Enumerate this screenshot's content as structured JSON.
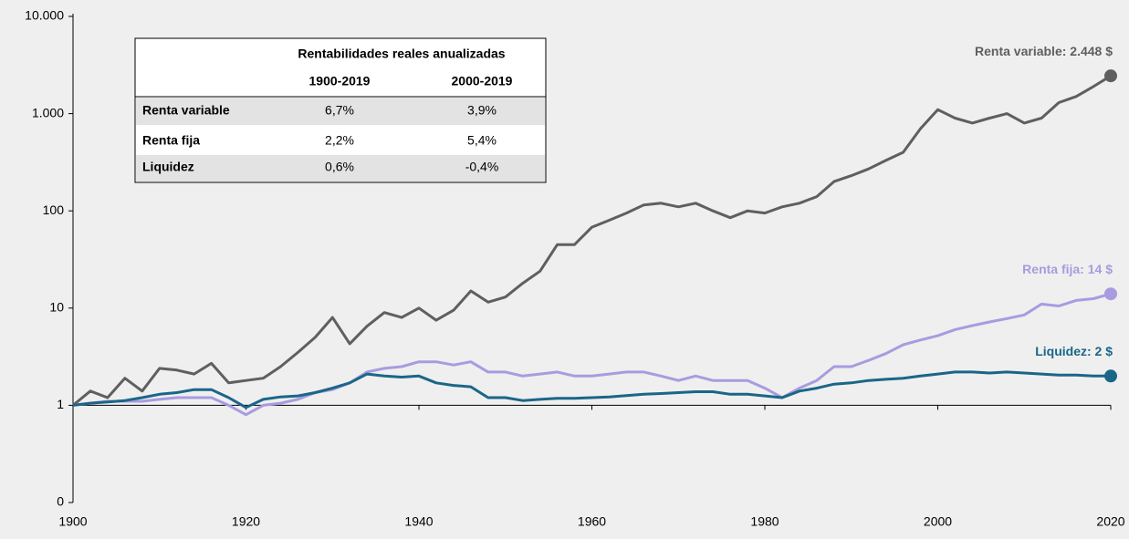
{
  "chart_data": {
    "type": "line",
    "log_y": true,
    "x": [
      1900,
      1902,
      1904,
      1906,
      1908,
      1910,
      1912,
      1914,
      1916,
      1918,
      1920,
      1922,
      1924,
      1926,
      1928,
      1930,
      1932,
      1934,
      1936,
      1938,
      1940,
      1942,
      1944,
      1946,
      1948,
      1950,
      1952,
      1954,
      1956,
      1958,
      1960,
      1962,
      1964,
      1966,
      1968,
      1970,
      1972,
      1974,
      1976,
      1978,
      1980,
      1982,
      1984,
      1986,
      1988,
      1990,
      1992,
      1994,
      1996,
      1998,
      2000,
      2002,
      2004,
      2006,
      2008,
      2010,
      2012,
      2014,
      2016,
      2018,
      2020
    ],
    "xlim": [
      1900,
      2020
    ],
    "xticks": [
      1900,
      1920,
      1940,
      1960,
      1980,
      2000,
      2020
    ],
    "ylim": [
      0.1,
      10000
    ],
    "yticks": [
      {
        "value": 0.1,
        "label": "0"
      },
      1,
      10,
      100,
      {
        "value": 1000,
        "label": "1.000"
      },
      {
        "value": 10000,
        "label": "10.000"
      }
    ],
    "series": [
      {
        "name": "Renta variable",
        "color": "#5f5f5f",
        "values": [
          1,
          1.4,
          1.2,
          1.9,
          1.4,
          2.4,
          2.3,
          2.1,
          2.7,
          1.7,
          1.8,
          1.9,
          2.5,
          3.5,
          5,
          8,
          4.3,
          6.5,
          9,
          8,
          10,
          7.5,
          9.5,
          15,
          11.5,
          13,
          18,
          24,
          45,
          45,
          68,
          80,
          95,
          115,
          120,
          110,
          120,
          100,
          85,
          100,
          95,
          110,
          120,
          140,
          200,
          230,
          270,
          330,
          400,
          700,
          1100,
          900,
          800,
          900,
          1000,
          800,
          900,
          1300,
          1500,
          1900,
          2448
        ]
      },
      {
        "name": "Renta fija",
        "color": "#a99be0",
        "values": [
          1,
          1.05,
          1.1,
          1.1,
          1.1,
          1.15,
          1.2,
          1.2,
          1.2,
          1.0,
          0.8,
          1.0,
          1.05,
          1.15,
          1.35,
          1.45,
          1.7,
          2.2,
          2.4,
          2.5,
          2.8,
          2.8,
          2.6,
          2.8,
          2.2,
          2.2,
          2.0,
          2.1,
          2.2,
          2.0,
          2.0,
          2.1,
          2.2,
          2.2,
          2.0,
          1.8,
          2.0,
          1.8,
          1.8,
          1.8,
          1.5,
          1.2,
          1.5,
          1.8,
          2.5,
          2.5,
          2.9,
          3.4,
          4.2,
          4.7,
          5.2,
          6,
          6.6,
          7.2,
          7.8,
          8.5,
          11,
          10.5,
          12,
          12.5,
          14
        ]
      },
      {
        "name": "Liquidez",
        "color": "#1a6688",
        "values": [
          1,
          1.05,
          1.08,
          1.12,
          1.2,
          1.3,
          1.35,
          1.45,
          1.45,
          1.2,
          0.95,
          1.15,
          1.22,
          1.25,
          1.35,
          1.5,
          1.7,
          2.1,
          2.0,
          1.95,
          2.0,
          1.7,
          1.6,
          1.55,
          1.2,
          1.2,
          1.12,
          1.15,
          1.18,
          1.18,
          1.2,
          1.22,
          1.26,
          1.3,
          1.32,
          1.35,
          1.38,
          1.38,
          1.3,
          1.3,
          1.25,
          1.2,
          1.4,
          1.5,
          1.65,
          1.7,
          1.8,
          1.85,
          1.9,
          2.0,
          2.1,
          2.2,
          2.2,
          2.15,
          2.2,
          2.15,
          2.1,
          2.05,
          2.05,
          2.0,
          2.0
        ]
      }
    ],
    "annotations": [
      "Renta variable: 2.448 $",
      "Renta fija: 14 $",
      "Liquidez: 2 $"
    ],
    "table": {
      "title": "Rentabilidades reales anualizadas",
      "columns": [
        "1900-2019",
        "2000-2019"
      ],
      "rows": [
        [
          "Renta variable",
          "6,7%",
          "3,9%"
        ],
        [
          "Renta fija",
          "2,2%",
          "5,4%"
        ],
        [
          "Liquidez",
          "0,6%",
          "-0,4%"
        ]
      ]
    }
  }
}
